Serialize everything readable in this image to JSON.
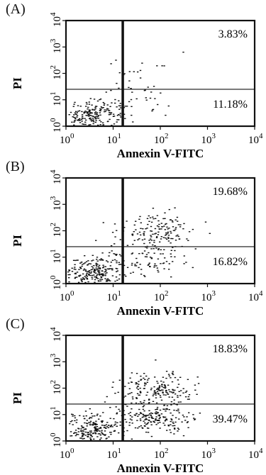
{
  "chart_data": [
    {
      "type": "scatter",
      "panel_label": "(A)",
      "xlabel": "Annexin V-FITC",
      "ylabel": "PI",
      "x_scale": "log",
      "y_scale": "log",
      "xlim": [
        1,
        10000
      ],
      "ylim": [
        1,
        10000
      ],
      "x_ticks": [
        {
          "base": "10",
          "exp": "0"
        },
        {
          "base": "10",
          "exp": "1"
        },
        {
          "base": "10",
          "exp": "2"
        },
        {
          "base": "10",
          "exp": "3"
        },
        {
          "base": "10",
          "exp": "4"
        }
      ],
      "y_ticks": [
        {
          "base": "10",
          "exp": "0"
        },
        {
          "base": "10",
          "exp": "1"
        },
        {
          "base": "10",
          "exp": "2"
        },
        {
          "base": "10",
          "exp": "3"
        },
        {
          "base": "10",
          "exp": "4"
        }
      ],
      "gate_x": 16,
      "gate_y": 25,
      "quadrant_labels": {
        "upper_right": "3.83%",
        "lower_right": "11.18%"
      },
      "populations": [
        {
          "x_center": 3.5,
          "y_center": 2.6,
          "spread_x": 0.33,
          "spread_y": 0.28,
          "count": 220
        },
        {
          "x_center": 22,
          "y_center": 10,
          "spread_x": 0.4,
          "spread_y": 0.35,
          "count": 45
        },
        {
          "x_center": 50,
          "y_center": 150,
          "spread_x": 0.45,
          "spread_y": 0.3,
          "count": 14
        }
      ]
    },
    {
      "type": "scatter",
      "panel_label": "(B)",
      "xlabel": "Annexin V-FITC",
      "ylabel": "PI",
      "x_scale": "log",
      "y_scale": "log",
      "xlim": [
        1,
        10000
      ],
      "ylim": [
        1,
        10000
      ],
      "x_ticks": [
        {
          "base": "10",
          "exp": "0"
        },
        {
          "base": "10",
          "exp": "1"
        },
        {
          "base": "10",
          "exp": "2"
        },
        {
          "base": "10",
          "exp": "3"
        },
        {
          "base": "10",
          "exp": "4"
        }
      ],
      "y_ticks": [
        {
          "base": "10",
          "exp": "0"
        },
        {
          "base": "10",
          "exp": "1"
        },
        {
          "base": "10",
          "exp": "2"
        },
        {
          "base": "10",
          "exp": "3"
        },
        {
          "base": "10",
          "exp": "4"
        }
      ],
      "gate_x": 16,
      "gate_y": 25,
      "quadrant_labels": {
        "upper_right": "19.68%",
        "lower_right": "16.82%"
      },
      "populations": [
        {
          "x_center": 3.5,
          "y_center": 2.8,
          "spread_x": 0.33,
          "spread_y": 0.3,
          "count": 240
        },
        {
          "x_center": 80,
          "y_center": 100,
          "spread_x": 0.42,
          "spread_y": 0.35,
          "count": 150
        },
        {
          "x_center": 40,
          "y_center": 8,
          "spread_x": 0.45,
          "spread_y": 0.3,
          "count": 90
        }
      ]
    },
    {
      "type": "scatter",
      "panel_label": "(C)",
      "xlabel": "Annexin V-FITC",
      "ylabel": "PI",
      "x_scale": "log",
      "y_scale": "log",
      "xlim": [
        1,
        10000
      ],
      "ylim": [
        1,
        10000
      ],
      "x_ticks": [
        {
          "base": "10",
          "exp": "0"
        },
        {
          "base": "10",
          "exp": "1"
        },
        {
          "base": "10",
          "exp": "2"
        },
        {
          "base": "10",
          "exp": "3"
        },
        {
          "base": "10",
          "exp": "4"
        }
      ],
      "y_ticks": [
        {
          "base": "10",
          "exp": "0"
        },
        {
          "base": "10",
          "exp": "1"
        },
        {
          "base": "10",
          "exp": "2"
        },
        {
          "base": "10",
          "exp": "3"
        },
        {
          "base": "10",
          "exp": "4"
        }
      ],
      "gate_x": 16,
      "gate_y": 25,
      "quadrant_labels": {
        "upper_right": "18.83%",
        "lower_right": "39.47%"
      },
      "populations": [
        {
          "x_center": 3.5,
          "y_center": 2.8,
          "spread_x": 0.3,
          "spread_y": 0.3,
          "count": 220
        },
        {
          "x_center": 80,
          "y_center": 90,
          "spread_x": 0.4,
          "spread_y": 0.35,
          "count": 180
        },
        {
          "x_center": 60,
          "y_center": 8,
          "spread_x": 0.45,
          "spread_y": 0.3,
          "count": 200
        }
      ]
    }
  ]
}
